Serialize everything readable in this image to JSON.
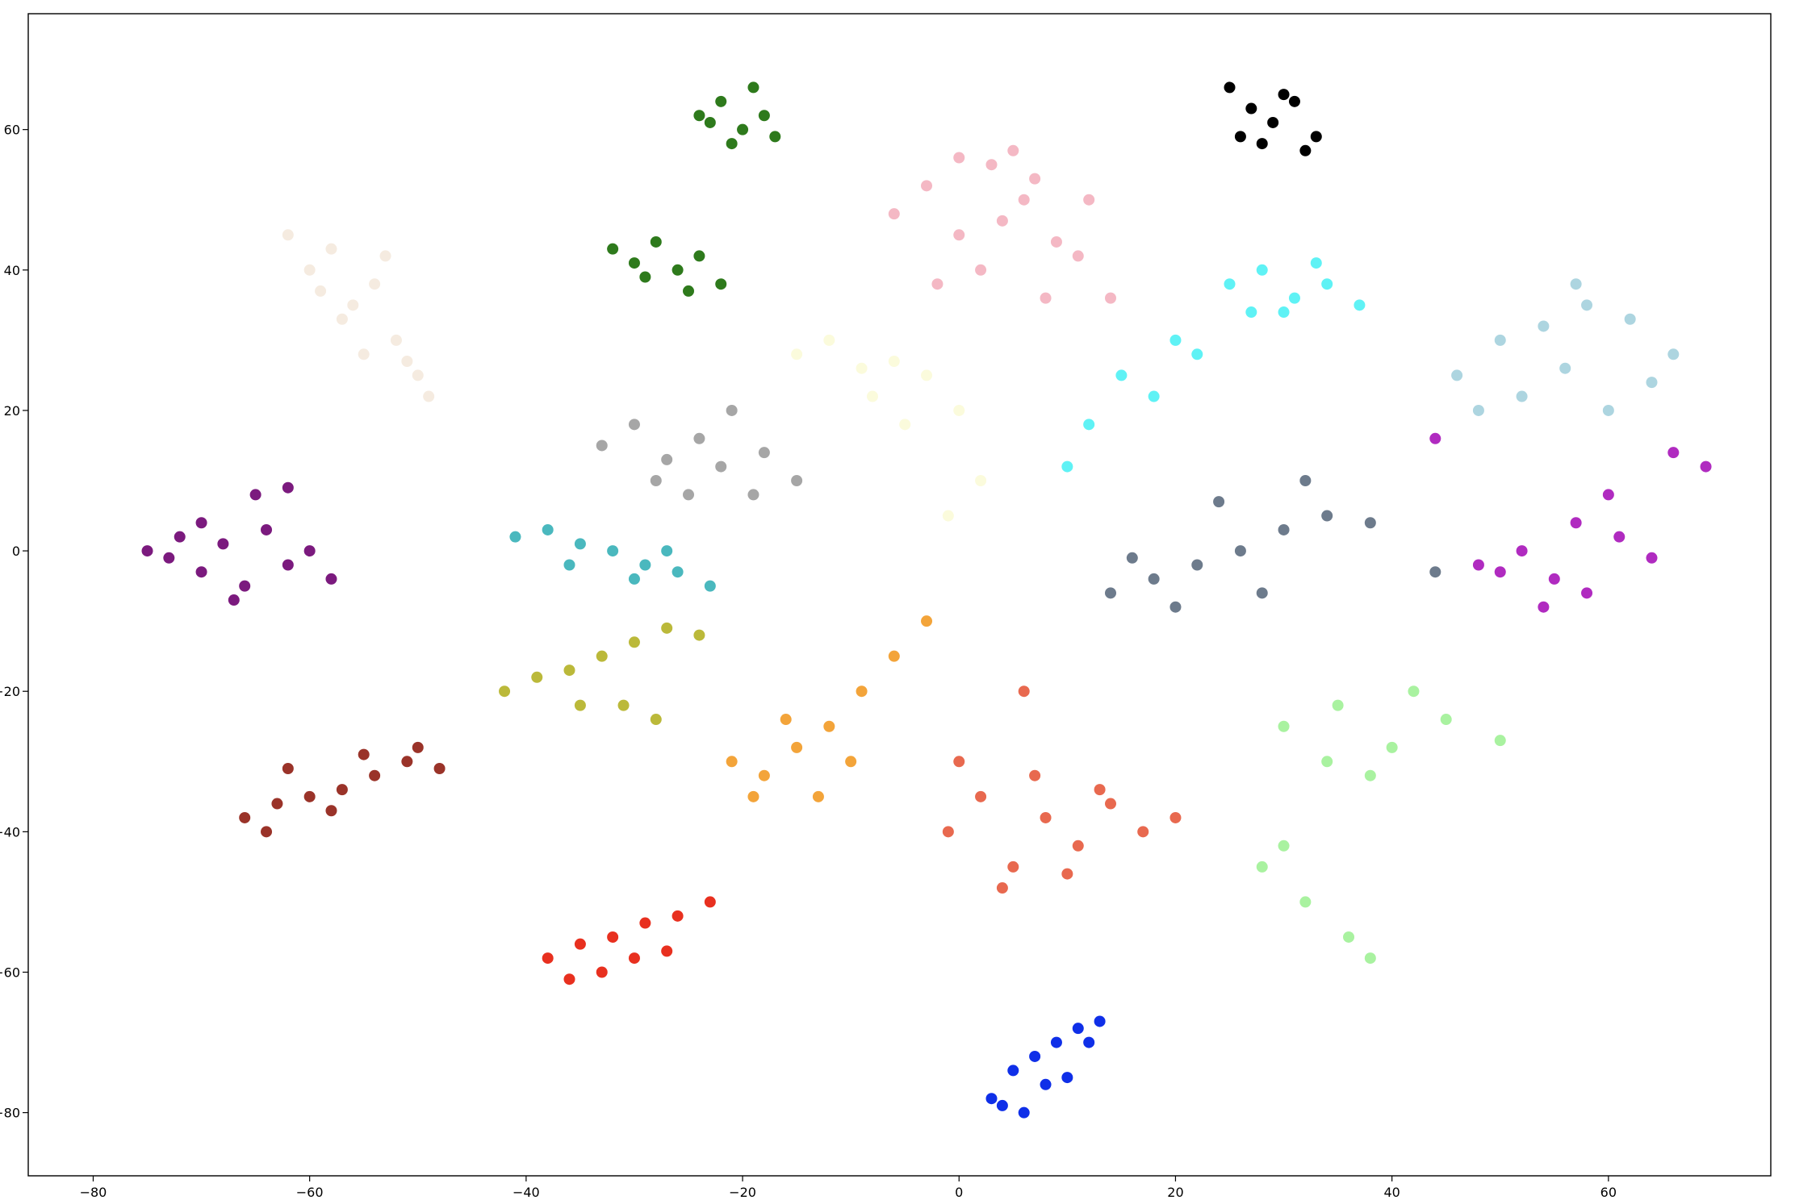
{
  "chart_data": {
    "type": "scatter",
    "xlim": [
      -86,
      75
    ],
    "ylim": [
      -89,
      76.5
    ],
    "xticks": [
      {
        "value": -80,
        "label": "−80"
      },
      {
        "value": -60,
        "label": "−60"
      },
      {
        "value": -40,
        "label": "−40"
      },
      {
        "value": -20,
        "label": "−20"
      },
      0,
      20,
      40,
      60
    ],
    "yticks": [
      {
        "value": -80,
        "label": "−80"
      },
      {
        "value": -60,
        "label": "−60"
      },
      {
        "value": -40,
        "label": "−40"
      },
      {
        "value": -20,
        "label": "−20"
      },
      0,
      20,
      40,
      60
    ],
    "series": [
      {
        "color": "#fbfbdc",
        "x": [
          -15,
          -12,
          -9,
          -6,
          -3,
          0,
          -5,
          -8,
          2,
          -1
        ],
        "values": [
          28,
          30,
          26,
          27,
          25,
          20,
          18,
          22,
          10,
          5
        ]
      },
      {
        "color": "#7b1a7e",
        "x": [
          -75,
          -72,
          -70,
          -68,
          -66,
          -64,
          -62,
          -60,
          -58,
          -70,
          -65,
          -62,
          -73,
          -67
        ],
        "values": [
          0,
          2,
          -3,
          1,
          -5,
          3,
          -2,
          0,
          -4,
          4,
          8,
          9,
          -1,
          -7
        ]
      },
      {
        "color": "#f5ebe0",
        "x": [
          -62,
          -60,
          -58,
          -56,
          -54,
          -52,
          -50,
          -55,
          -57,
          -53,
          -59,
          -51,
          -49
        ],
        "values": [
          45,
          40,
          43,
          35,
          38,
          30,
          25,
          28,
          33,
          42,
          37,
          27,
          22
        ]
      },
      {
        "color": "#2e7a1c",
        "x": [
          -24,
          -22,
          -20,
          -18,
          -19,
          -21,
          -23,
          -17,
          -32,
          -30,
          -28,
          -26,
          -24,
          -22,
          -29,
          -25
        ],
        "values": [
          62,
          64,
          60,
          62,
          66,
          58,
          61,
          59,
          43,
          41,
          44,
          40,
          42,
          38,
          39,
          37
        ]
      },
      {
        "color": "#f4b8c4",
        "x": [
          -6,
          -3,
          0,
          3,
          6,
          9,
          12,
          2,
          5,
          -2,
          8,
          11,
          4,
          0,
          7,
          14
        ],
        "values": [
          48,
          52,
          45,
          55,
          50,
          44,
          50,
          40,
          57,
          38,
          36,
          42,
          47,
          56,
          53,
          36
        ]
      },
      {
        "color": "#000000",
        "x": [
          25,
          27,
          29,
          31,
          33,
          28,
          30,
          26,
          32
        ],
        "values": [
          66,
          63,
          61,
          64,
          59,
          58,
          65,
          59,
          57
        ]
      },
      {
        "color": "#5ff2f5",
        "x": [
          25,
          28,
          31,
          34,
          37,
          30,
          27,
          33,
          20,
          15,
          12,
          18,
          10,
          22
        ],
        "values": [
          38,
          40,
          36,
          38,
          35,
          34,
          34,
          41,
          30,
          25,
          18,
          22,
          12,
          28
        ]
      },
      {
        "color": "#add5e0",
        "x": [
          46,
          50,
          54,
          58,
          62,
          66,
          52,
          56,
          60,
          64,
          48,
          57
        ],
        "values": [
          25,
          30,
          32,
          35,
          33,
          28,
          22,
          26,
          20,
          24,
          20,
          38
        ]
      },
      {
        "color": "#b02bc0",
        "x": [
          48,
          52,
          55,
          58,
          61,
          64,
          57,
          60,
          54,
          50,
          66,
          69,
          44
        ],
        "values": [
          -2,
          0,
          -4,
          -6,
          2,
          -1,
          4,
          8,
          -8,
          -3,
          14,
          12,
          16
        ]
      },
      {
        "color": "#6d7b8c",
        "x": [
          14,
          18,
          22,
          26,
          30,
          34,
          38,
          28,
          20,
          24,
          32,
          44,
          16
        ],
        "values": [
          -6,
          -4,
          -2,
          0,
          3,
          5,
          4,
          -6,
          -8,
          7,
          10,
          -3,
          -1
        ]
      },
      {
        "color": "#a9f2a0",
        "x": [
          30,
          35,
          40,
          45,
          50,
          38,
          42,
          34,
          28,
          32,
          36,
          38,
          30
        ],
        "values": [
          -25,
          -22,
          -28,
          -24,
          -27,
          -32,
          -20,
          -30,
          -45,
          -50,
          -55,
          -58,
          -42
        ]
      },
      {
        "color": "#0f2fe8",
        "x": [
          3,
          5,
          7,
          9,
          11,
          13,
          6,
          8,
          10,
          4,
          12
        ],
        "values": [
          -78,
          -74,
          -72,
          -70,
          -68,
          -67,
          -80,
          -76,
          -75,
          -79,
          -70
        ]
      },
      {
        "color": "#e8694f",
        "x": [
          -1,
          2,
          5,
          8,
          11,
          14,
          17,
          4,
          7,
          10,
          13,
          0,
          20,
          6
        ],
        "values": [
          -40,
          -35,
          -45,
          -38,
          -42,
          -36,
          -40,
          -48,
          -32,
          -46,
          -34,
          -30,
          -38,
          -20
        ]
      },
      {
        "color": "#f3a43a",
        "x": [
          -21,
          -18,
          -15,
          -12,
          -9,
          -6,
          -3,
          -16,
          -13,
          -10,
          -19
        ],
        "values": [
          -30,
          -32,
          -28,
          -25,
          -20,
          -15,
          -10,
          -24,
          -35,
          -30,
          -35
        ]
      },
      {
        "color": "#e8301f",
        "x": [
          -38,
          -35,
          -32,
          -29,
          -26,
          -23,
          -33,
          -30,
          -27,
          -36
        ],
        "values": [
          -58,
          -56,
          -55,
          -53,
          -52,
          -50,
          -60,
          -58,
          -57,
          -61
        ]
      },
      {
        "color": "#9a3329",
        "x": [
          -66,
          -63,
          -60,
          -57,
          -54,
          -51,
          -48,
          -62,
          -58,
          -55,
          -50,
          -64
        ],
        "values": [
          -38,
          -36,
          -35,
          -34,
          -32,
          -30,
          -31,
          -31,
          -37,
          -29,
          -28,
          -40
        ]
      },
      {
        "color": "#bbb93a",
        "x": [
          -42,
          -39,
          -36,
          -33,
          -30,
          -27,
          -24,
          -35,
          -31,
          -28
        ],
        "values": [
          -20,
          -18,
          -17,
          -15,
          -13,
          -11,
          -12,
          -22,
          -22,
          -24
        ]
      },
      {
        "color": "#4ab8be",
        "x": [
          -41,
          -38,
          -35,
          -32,
          -29,
          -26,
          -23,
          -36,
          -30,
          -27
        ],
        "values": [
          2,
          3,
          1,
          0,
          -2,
          -3,
          -5,
          -2,
          -4,
          0
        ]
      },
      {
        "color": "#a6a6a6",
        "x": [
          -33,
          -30,
          -27,
          -24,
          -21,
          -18,
          -15,
          -28,
          -25,
          -22,
          -19
        ],
        "values": [
          15,
          18,
          13,
          16,
          20,
          14,
          10,
          10,
          8,
          12,
          8
        ]
      }
    ]
  }
}
